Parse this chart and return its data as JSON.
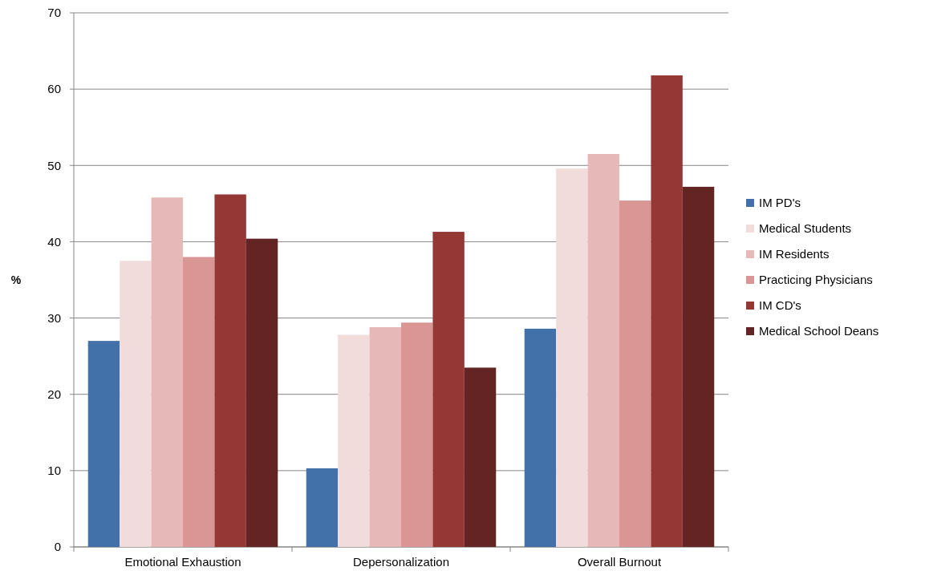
{
  "chart_data": {
    "type": "bar",
    "ylabel": "%",
    "categories": [
      "Emotional Exhaustion",
      "Depersonalization",
      "Overall Burnout"
    ],
    "series": [
      {
        "name": "IM PD's",
        "color": "#4270a8",
        "values": [
          27,
          10.3,
          28.6
        ]
      },
      {
        "name": "Medical Students",
        "color": "#f2dcdb",
        "values": [
          37.5,
          27.8,
          49.6
        ]
      },
      {
        "name": "IM Residents",
        "color": "#e6b9b8",
        "values": [
          45.8,
          28.8,
          51.5
        ]
      },
      {
        "name": "Practicing Physicians",
        "color": "#d99694",
        "values": [
          38,
          29.4,
          45.4
        ]
      },
      {
        "name": "IM CD's",
        "color": "#953735",
        "values": [
          46.2,
          41.3,
          61.8
        ]
      },
      {
        "name": "Medical School Deans",
        "color": "#632523",
        "values": [
          40.4,
          23.5,
          47.2
        ]
      }
    ],
    "ylim": [
      0,
      70
    ],
    "yticks": [
      0,
      10,
      20,
      30,
      40,
      50,
      60,
      70
    ],
    "grid": "y",
    "legend": "right"
  }
}
